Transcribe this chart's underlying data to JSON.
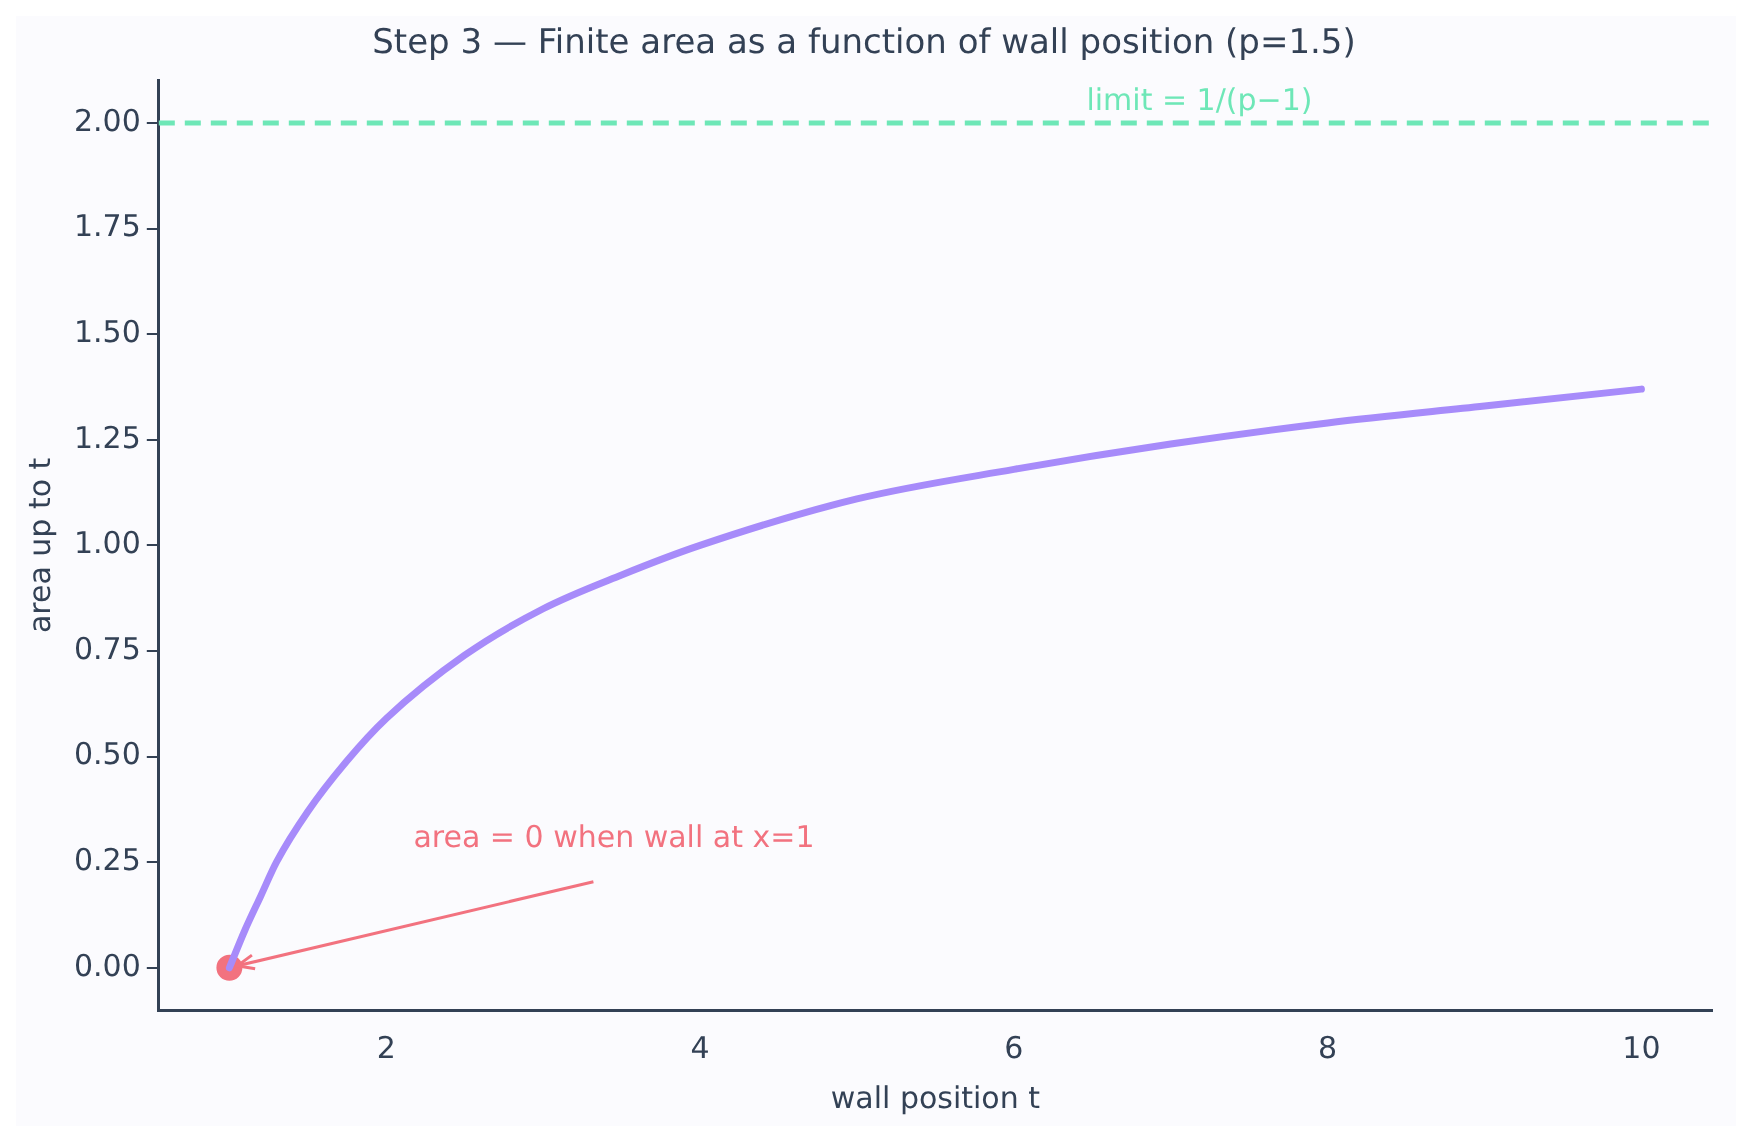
{
  "chart_data": {
    "type": "line",
    "title": "Step 3 — Finite area as a function of wall position (p=1.5)",
    "xlabel": "wall position t",
    "ylabel": "area up to t",
    "xlim": [
      0.55,
      10.45
    ],
    "xticks": [
      2,
      4,
      6,
      8,
      10
    ],
    "ylim": [
      -0.1,
      2.1
    ],
    "yticks": [
      {
        "value": 0,
        "label": "0.00"
      },
      {
        "value": 0.25,
        "label": "0.25"
      },
      {
        "value": 0.5,
        "label": "0.50"
      },
      {
        "value": 0.75,
        "label": "0.75"
      },
      {
        "value": 1,
        "label": "1.00"
      },
      {
        "value": 1.25,
        "label": "1.25"
      },
      {
        "value": 1.5,
        "label": "1.50"
      },
      {
        "value": 1.75,
        "label": "1.75"
      },
      {
        "value": 2,
        "label": "2.00"
      }
    ],
    "grid": false,
    "legend": false,
    "series": [
      {
        "color": "#a78bfa",
        "marker": "none",
        "x": [
          1,
          1.1,
          1.2,
          1.3,
          1.5,
          1.75,
          2,
          2.5,
          3,
          3.5,
          4,
          5,
          6,
          7,
          8,
          9,
          10
        ],
        "values": [
          0,
          0.09,
          0.17,
          0.25,
          0.37,
          0.49,
          0.59,
          0.74,
          0.85,
          0.93,
          1.0,
          1.11,
          1.18,
          1.24,
          1.29,
          1.33,
          1.37
        ]
      },
      {
        "type": "scatter",
        "color": "#f2727f",
        "marker": "circle",
        "x": [
          1
        ],
        "values": [
          0
        ]
      }
    ],
    "ref_lines": [
      {
        "axis": "y",
        "value": 2,
        "color": "#6ee7b7",
        "line_style": "dashed"
      }
    ],
    "annotations": [
      "limit = 1/(p−1)",
      {
        "text": "area = 0 when wall at x=1",
        "x": 1,
        "y": 0
      }
    ]
  }
}
